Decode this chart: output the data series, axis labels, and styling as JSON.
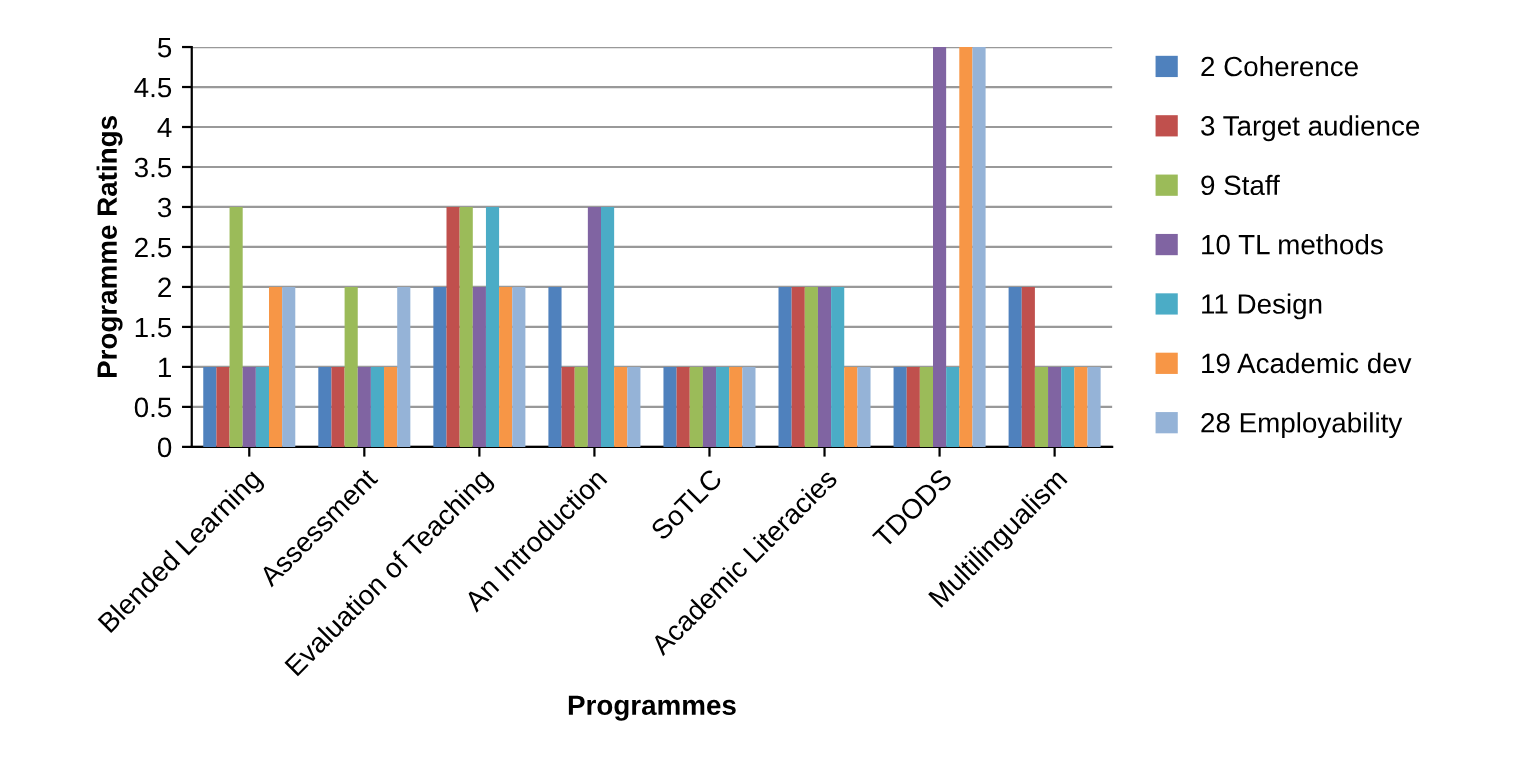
{
  "chart_data": {
    "type": "bar",
    "xlabel": "Programmes",
    "ylabel": "Programme Ratings",
    "categories": [
      "Blended Learning",
      "Assessment",
      "Evaluation of Teaching",
      "An Introduction",
      "SoTLC",
      "Academic Literacies",
      "TDODS",
      "Multilingualism"
    ],
    "series": [
      {
        "name": "2 Coherence",
        "color": "#4f81bd",
        "values": [
          1,
          1,
          2,
          2,
          1,
          2,
          1,
          2
        ]
      },
      {
        "name": "3 Target audience",
        "color": "#c0504d",
        "values": [
          1,
          1,
          3,
          1,
          1,
          2,
          1,
          2
        ]
      },
      {
        "name": "9 Staff",
        "color": "#9bbb59",
        "values": [
          3,
          2,
          3,
          1,
          1,
          2,
          1,
          1
        ]
      },
      {
        "name": "10 TL methods",
        "color": "#8064a2",
        "values": [
          1,
          1,
          2,
          3,
          1,
          2,
          5,
          1
        ]
      },
      {
        "name": "11 Design",
        "color": "#4bacc6",
        "values": [
          1,
          1,
          3,
          3,
          1,
          2,
          1,
          1
        ]
      },
      {
        "name": "19 Academic dev",
        "color": "#f79646",
        "values": [
          2,
          1,
          2,
          1,
          1,
          1,
          5,
          1
        ]
      },
      {
        "name": "28 Employability",
        "color": "#95b3d7",
        "values": [
          2,
          2,
          2,
          1,
          1,
          1,
          5,
          1
        ]
      }
    ],
    "ylim": [
      0,
      5
    ],
    "yticks": [
      0,
      0.5,
      1,
      1.5,
      2,
      2.5,
      3,
      3.5,
      4,
      4.5,
      5
    ],
    "grid": "y",
    "legend": "right"
  }
}
